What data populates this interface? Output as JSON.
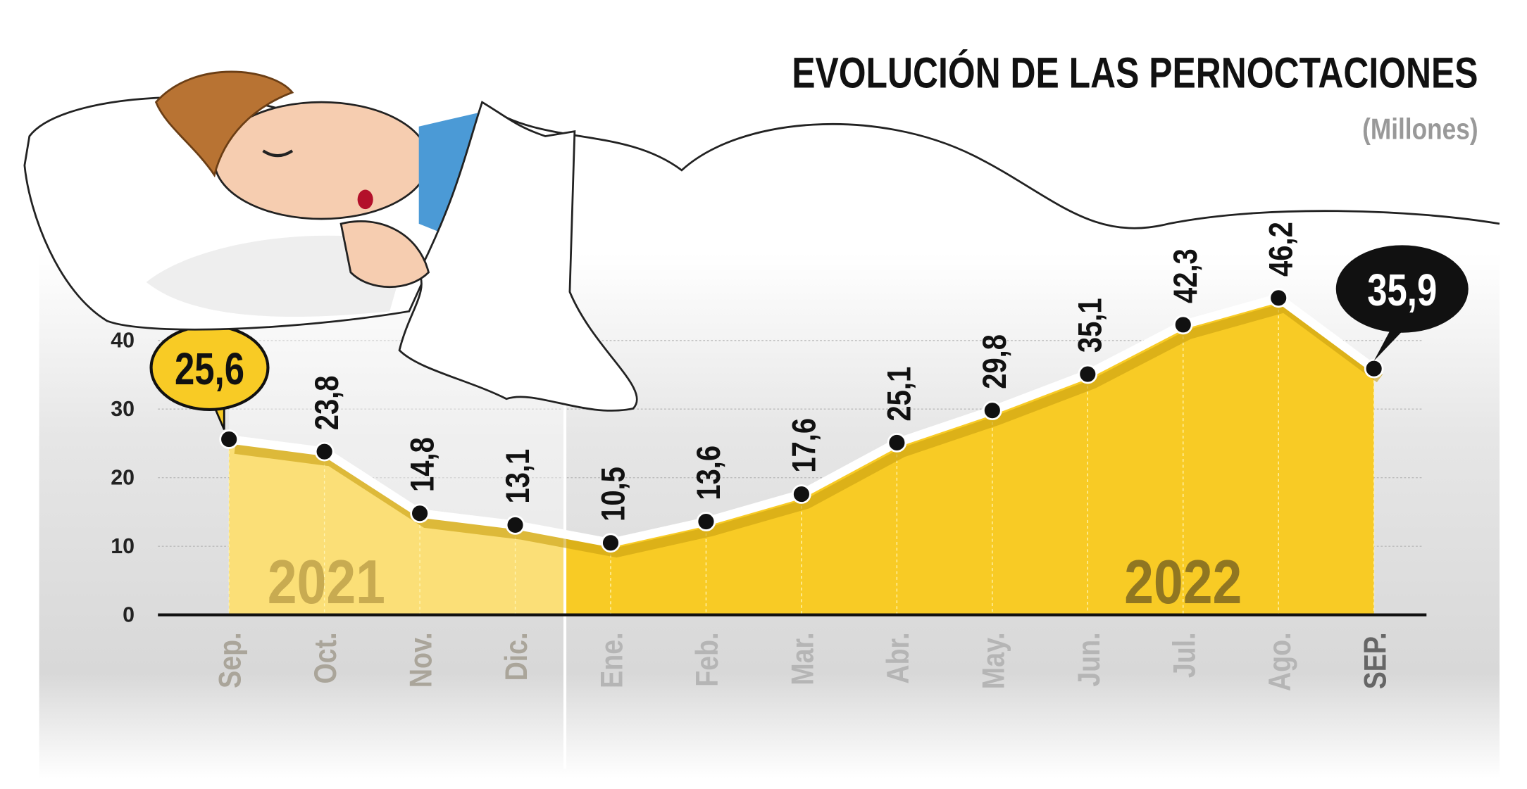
{
  "chart_data": {
    "type": "area",
    "title": "EVOLUCIÓN DE LAS PERNOCTACIONES",
    "subtitle": "(Millones)",
    "categories": [
      "Sep.",
      "Oct.",
      "Nov.",
      "Dic.",
      "Ene.",
      "Feb.",
      "Mar.",
      "Abr.",
      "May.",
      "Jun.",
      "Jul.",
      "Ago.",
      "SEP."
    ],
    "values": [
      25.6,
      23.8,
      14.8,
      13.1,
      10.5,
      13.6,
      17.6,
      25.1,
      29.8,
      35.1,
      42.3,
      46.2,
      35.9
    ],
    "value_labels": [
      "25,6",
      "23,8",
      "14,8",
      "13,1",
      "10,5",
      "13,6",
      "17,6",
      "25,1",
      "29,8",
      "35,1",
      "42,3",
      "46,2",
      "35,9"
    ],
    "annotations": [
      "2021",
      "2022"
    ],
    "color": "#f8cb25",
    "ylim": [
      0,
      40
    ],
    "yticks": [
      0,
      10,
      20,
      30,
      40
    ],
    "grid": true
  }
}
